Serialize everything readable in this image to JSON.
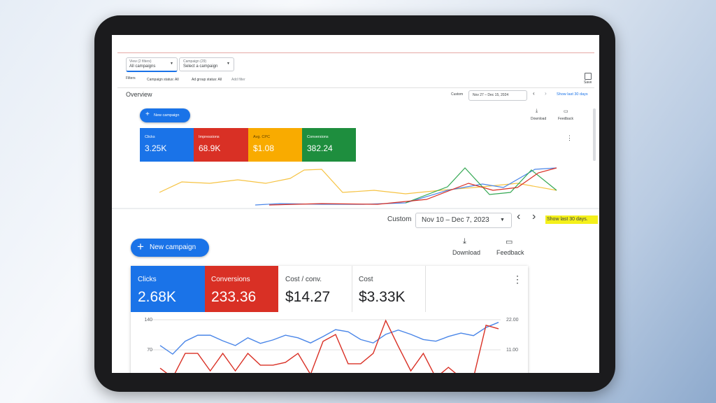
{
  "top": {
    "view_label": "View (2 filters)",
    "view_value": "All campaigns",
    "campaign_label": "Campaign (29)",
    "campaign_value": "Select a campaign",
    "save": "Save",
    "filters": "Filters",
    "filter_chips": [
      "Campaign status: All",
      "Ad group status: All",
      "Add filter"
    ],
    "overview": "Overview",
    "custom": "Custom",
    "date": "Nov 27 – Dec 15, 2024",
    "show_last": "Show last 30 days",
    "new_campaign": "New campaign",
    "download": "Download",
    "feedback": "Feedback",
    "metrics": [
      {
        "label": "Clicks",
        "value": "3.25K"
      },
      {
        "label": "Impressions",
        "value": "68.9K"
      },
      {
        "label": "Avg. CPC",
        "value": "$1.08"
      },
      {
        "label": "Conversions",
        "value": "382.24"
      }
    ]
  },
  "bottom": {
    "custom": "Custom",
    "date": "Nov 10 – Dec 7, 2023",
    "show_last": "Show last 30 days.",
    "new_campaign": "New campaign",
    "download": "Download",
    "feedback": "Feedback",
    "metrics": [
      {
        "value": "2.68K"
      },
      {
        "value": "233.36"
      },
      {
        "label": "Cost / conv.",
        "value": "$14.27"
      },
      {
        "label": "Cost",
        "value": "$3.33K"
      }
    ]
  },
  "chart_data": {
    "type": "line",
    "categories": [
      null,
      null,
      null,
      null,
      null,
      null,
      null,
      null,
      null,
      null,
      null,
      null,
      null,
      null,
      null,
      null,
      null,
      null,
      null,
      null,
      null,
      null,
      null,
      null,
      null,
      null,
      null,
      null
    ],
    "series": [
      {
        "name": "Clicks",
        "color": "#4a86e8",
        "values": [
          80,
          60,
          90,
          104,
          104,
          91,
          80,
          98,
          85,
          93,
          104,
          98,
          86,
          101,
          117,
          112,
          94,
          86,
          106,
          116,
          106,
          94,
          90,
          101,
          109,
          103,
          122,
          134
        ]
      },
      {
        "name": "Conversions",
        "color": "#d93025",
        "axis": "y2",
        "values": [
          4.3,
          0.8,
          9.7,
          9.7,
          3.3,
          9.7,
          3.3,
          9.7,
          5.4,
          5.4,
          6.4,
          9.7,
          2,
          14.1,
          16.6,
          5.9,
          5.9,
          9.7,
          21.7,
          12.3,
          3.3,
          9.7,
          0.8,
          4.6,
          0.8,
          0.8,
          20,
          18.7
        ]
      }
    ],
    "ylim": [
      0,
      140
    ],
    "yticks": [
      70,
      140
    ],
    "y2lim": [
      0,
      22
    ],
    "y2ticks": [
      {
        "value": 11,
        "label": "11.00"
      },
      {
        "value": 22,
        "label": "22.00"
      }
    ],
    "grid": true
  }
}
